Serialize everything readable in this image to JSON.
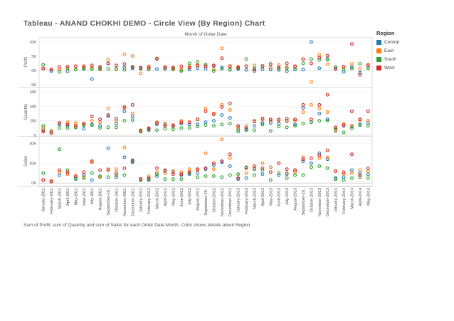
{
  "page": {
    "title": "Tableau - ANAND CHOKHI DEMO - Circle View (By Region) Chart",
    "caption": "Sum of Profit, sum of Quantity and sum of Sales for each Order Date Month.  Color shows details about Region."
  },
  "legend": {
    "title": "Region",
    "items": [
      {
        "label": "Central",
        "color": "#1f77b4"
      },
      {
        "label": "East",
        "color": "#ff7f0e"
      },
      {
        "label": "South",
        "color": "#2ca02c"
      },
      {
        "label": "West",
        "color": "#d62728"
      }
    ]
  },
  "chart_data": {
    "type": "scatter",
    "title": "Month of Order Date",
    "mark": "circle",
    "categories": [
      "January-2011",
      "February-2011",
      "March-2011",
      "April-2011",
      "May-2011",
      "June-2011",
      "July-2011",
      "August-2011",
      "September-20..",
      "October-2011",
      "November-2011",
      "December-2011",
      "January-2012",
      "February-2012",
      "March-2012",
      "April-2012",
      "May-2012",
      "June-2012",
      "July-2012",
      "August-2012",
      "September-20..",
      "October-2012",
      "November-2012",
      "December-2012",
      "January-2013",
      "February-2013",
      "March-2013",
      "April-2013",
      "May-2013",
      "June-2013",
      "July-2013",
      "August-2013",
      "September-20..",
      "October-2013",
      "November-2013",
      "December-2013",
      "January-2014",
      "February-2014",
      "March-2014",
      "April-2014",
      "May-2014"
    ],
    "series_names": [
      "Central",
      "East",
      "South",
      "West"
    ],
    "panels": [
      {
        "ylabel": "Profit",
        "ylim": [
          -5500,
          11500
        ],
        "ticks": [
          {
            "v": 10000,
            "label": "10K"
          },
          {
            "v": 5000,
            "label": "5K"
          },
          {
            "v": 0,
            "label": "0K"
          },
          {
            "v": -5000,
            "label": "-5K"
          }
        ],
        "series": {
          "Central": [
            700,
            -200,
            300,
            -300,
            300,
            500,
            -3000,
            800,
            2400,
            500,
            1100,
            800,
            800,
            300,
            500,
            500,
            300,
            200,
            300,
            800,
            600,
            1600,
            1000,
            300,
            500,
            200,
            -200,
            400,
            300,
            200,
            -300,
            300,
            300,
            10000,
            800,
            3800,
            700,
            -500,
            1200,
            -800,
            900
          ],
          "East": [
            600,
            300,
            300,
            600,
            300,
            1100,
            900,
            300,
            3700,
            400,
            5700,
            5100,
            -1000,
            1500,
            4200,
            1200,
            400,
            300,
            1500,
            1900,
            1400,
            300,
            7800,
            1600,
            1300,
            1500,
            1800,
            1600,
            1000,
            1900,
            1100,
            1300,
            4000,
            -4000,
            5500,
            2200,
            1200,
            1100,
            2300,
            600,
            2000
          ],
          "South": [
            2000,
            300,
            -500,
            800,
            300,
            800,
            500,
            600,
            500,
            600,
            200,
            1300,
            600,
            400,
            4000,
            1000,
            700,
            -200,
            2500,
            3000,
            2000,
            -200,
            600,
            200,
            800,
            4000,
            800,
            1600,
            2300,
            700,
            800,
            400,
            2500,
            4000,
            3700,
            4000,
            1200,
            300,
            700,
            2400,
            800
          ],
          "West": [
            700,
            300,
            1200,
            1400,
            1500,
            1500,
            1800,
            1300,
            2500,
            1800,
            2300,
            1100,
            1000,
            1000,
            4200,
            1000,
            1000,
            1500,
            1000,
            1700,
            1500,
            1800,
            4300,
            1400,
            1000,
            1500,
            300,
            1500,
            2200,
            1100,
            2500,
            1500,
            3900,
            2500,
            4500,
            5200,
            500,
            1300,
            9300,
            -1500,
            1800
          ]
        }
      },
      {
        "ylabel": "Quantity",
        "ylim": [
          0,
          650
        ],
        "ticks": [
          {
            "v": 600,
            "label": "600"
          },
          {
            "v": 400,
            "label": "400"
          },
          {
            "v": 200,
            "label": "200"
          },
          {
            "v": 0,
            "label": "0"
          }
        ],
        "series": {
          "Central": [
            70,
            50,
            150,
            130,
            110,
            90,
            150,
            130,
            260,
            160,
            330,
            260,
            60,
            80,
            150,
            150,
            120,
            160,
            150,
            150,
            180,
            200,
            280,
            240,
            80,
            80,
            130,
            170,
            170,
            160,
            200,
            150,
            380,
            180,
            300,
            220,
            60,
            130,
            120,
            150,
            170
          ],
          "East": [
            100,
            60,
            170,
            180,
            170,
            150,
            200,
            180,
            370,
            190,
            380,
            300,
            70,
            100,
            180,
            160,
            130,
            200,
            180,
            220,
            370,
            300,
            420,
            350,
            110,
            130,
            200,
            220,
            200,
            220,
            190,
            200,
            320,
            420,
            370,
            320,
            70,
            160,
            130,
            210,
            200
          ],
          "South": [
            130,
            30,
            100,
            100,
            110,
            140,
            140,
            100,
            110,
            110,
            200,
            210,
            50,
            70,
            70,
            90,
            80,
            100,
            100,
            120,
            140,
            130,
            150,
            160,
            50,
            70,
            70,
            150,
            60,
            120,
            110,
            130,
            160,
            180,
            200,
            200,
            90,
            40,
            100,
            140,
            130
          ],
          "West": [
            50,
            30,
            170,
            150,
            130,
            160,
            260,
            220,
            280,
            230,
            390,
            420,
            60,
            90,
            170,
            130,
            140,
            180,
            180,
            220,
            330,
            290,
            390,
            440,
            130,
            100,
            190,
            230,
            220,
            210,
            230,
            220,
            420,
            220,
            420,
            560,
            110,
            140,
            330,
            220,
            330
          ]
        }
      },
      {
        "ylabel": "Sales",
        "ylim": [
          -2000,
          46000
        ],
        "ticks": [
          {
            "v": 40000,
            "label": "40K"
          },
          {
            "v": 20000,
            "label": "20K"
          },
          {
            "v": 0,
            "label": "0K"
          }
        ],
        "series": {
          "Central": [
            3000,
            2000,
            8000,
            9000,
            5000,
            8000,
            3000,
            6000,
            35000,
            6000,
            26000,
            21000,
            4000,
            3000,
            7000,
            12000,
            11000,
            8000,
            9000,
            10000,
            14000,
            18000,
            21000,
            17000,
            4000,
            5000,
            14000,
            9000,
            16000,
            8000,
            9000,
            13000,
            22000,
            20000,
            30000,
            24000,
            5000,
            6000,
            13000,
            10000,
            9000
          ],
          "East": [
            3000,
            2000,
            11000,
            9000,
            7000,
            6000,
            21000,
            6000,
            14000,
            14000,
            36000,
            22000,
            3000,
            7000,
            11000,
            10000,
            12000,
            11000,
            14000,
            13000,
            30000,
            14000,
            44000,
            25000,
            9000,
            10000,
            15000,
            20000,
            16000,
            20000,
            10000,
            11000,
            26000,
            16000,
            25000,
            26000,
            12000,
            9000,
            10000,
            13000,
            12000
          ],
          "South": [
            10000,
            1500,
            34000,
            13000,
            4000,
            5000,
            10000,
            7000,
            6000,
            8000,
            8000,
            22000,
            3000,
            4000,
            9000,
            4000,
            4000,
            4000,
            10000,
            6000,
            7000,
            7000,
            6000,
            8000,
            9000,
            16000,
            8000,
            13000,
            3000,
            10000,
            5000,
            8000,
            8000,
            16000,
            17000,
            15000,
            4000,
            3000,
            5000,
            6000,
            5000
          ],
          "West": [
            3000,
            1500,
            13000,
            11000,
            7000,
            11000,
            22000,
            13000,
            13000,
            10000,
            15000,
            23000,
            4000,
            5000,
            15000,
            13000,
            9000,
            9000,
            11000,
            14000,
            15000,
            20000,
            22000,
            29000,
            5000,
            15000,
            17000,
            15000,
            11000,
            20000,
            14000,
            13000,
            24000,
            25000,
            28000,
            33000,
            12000,
            11000,
            29000,
            8000,
            15000
          ]
        }
      }
    ]
  }
}
